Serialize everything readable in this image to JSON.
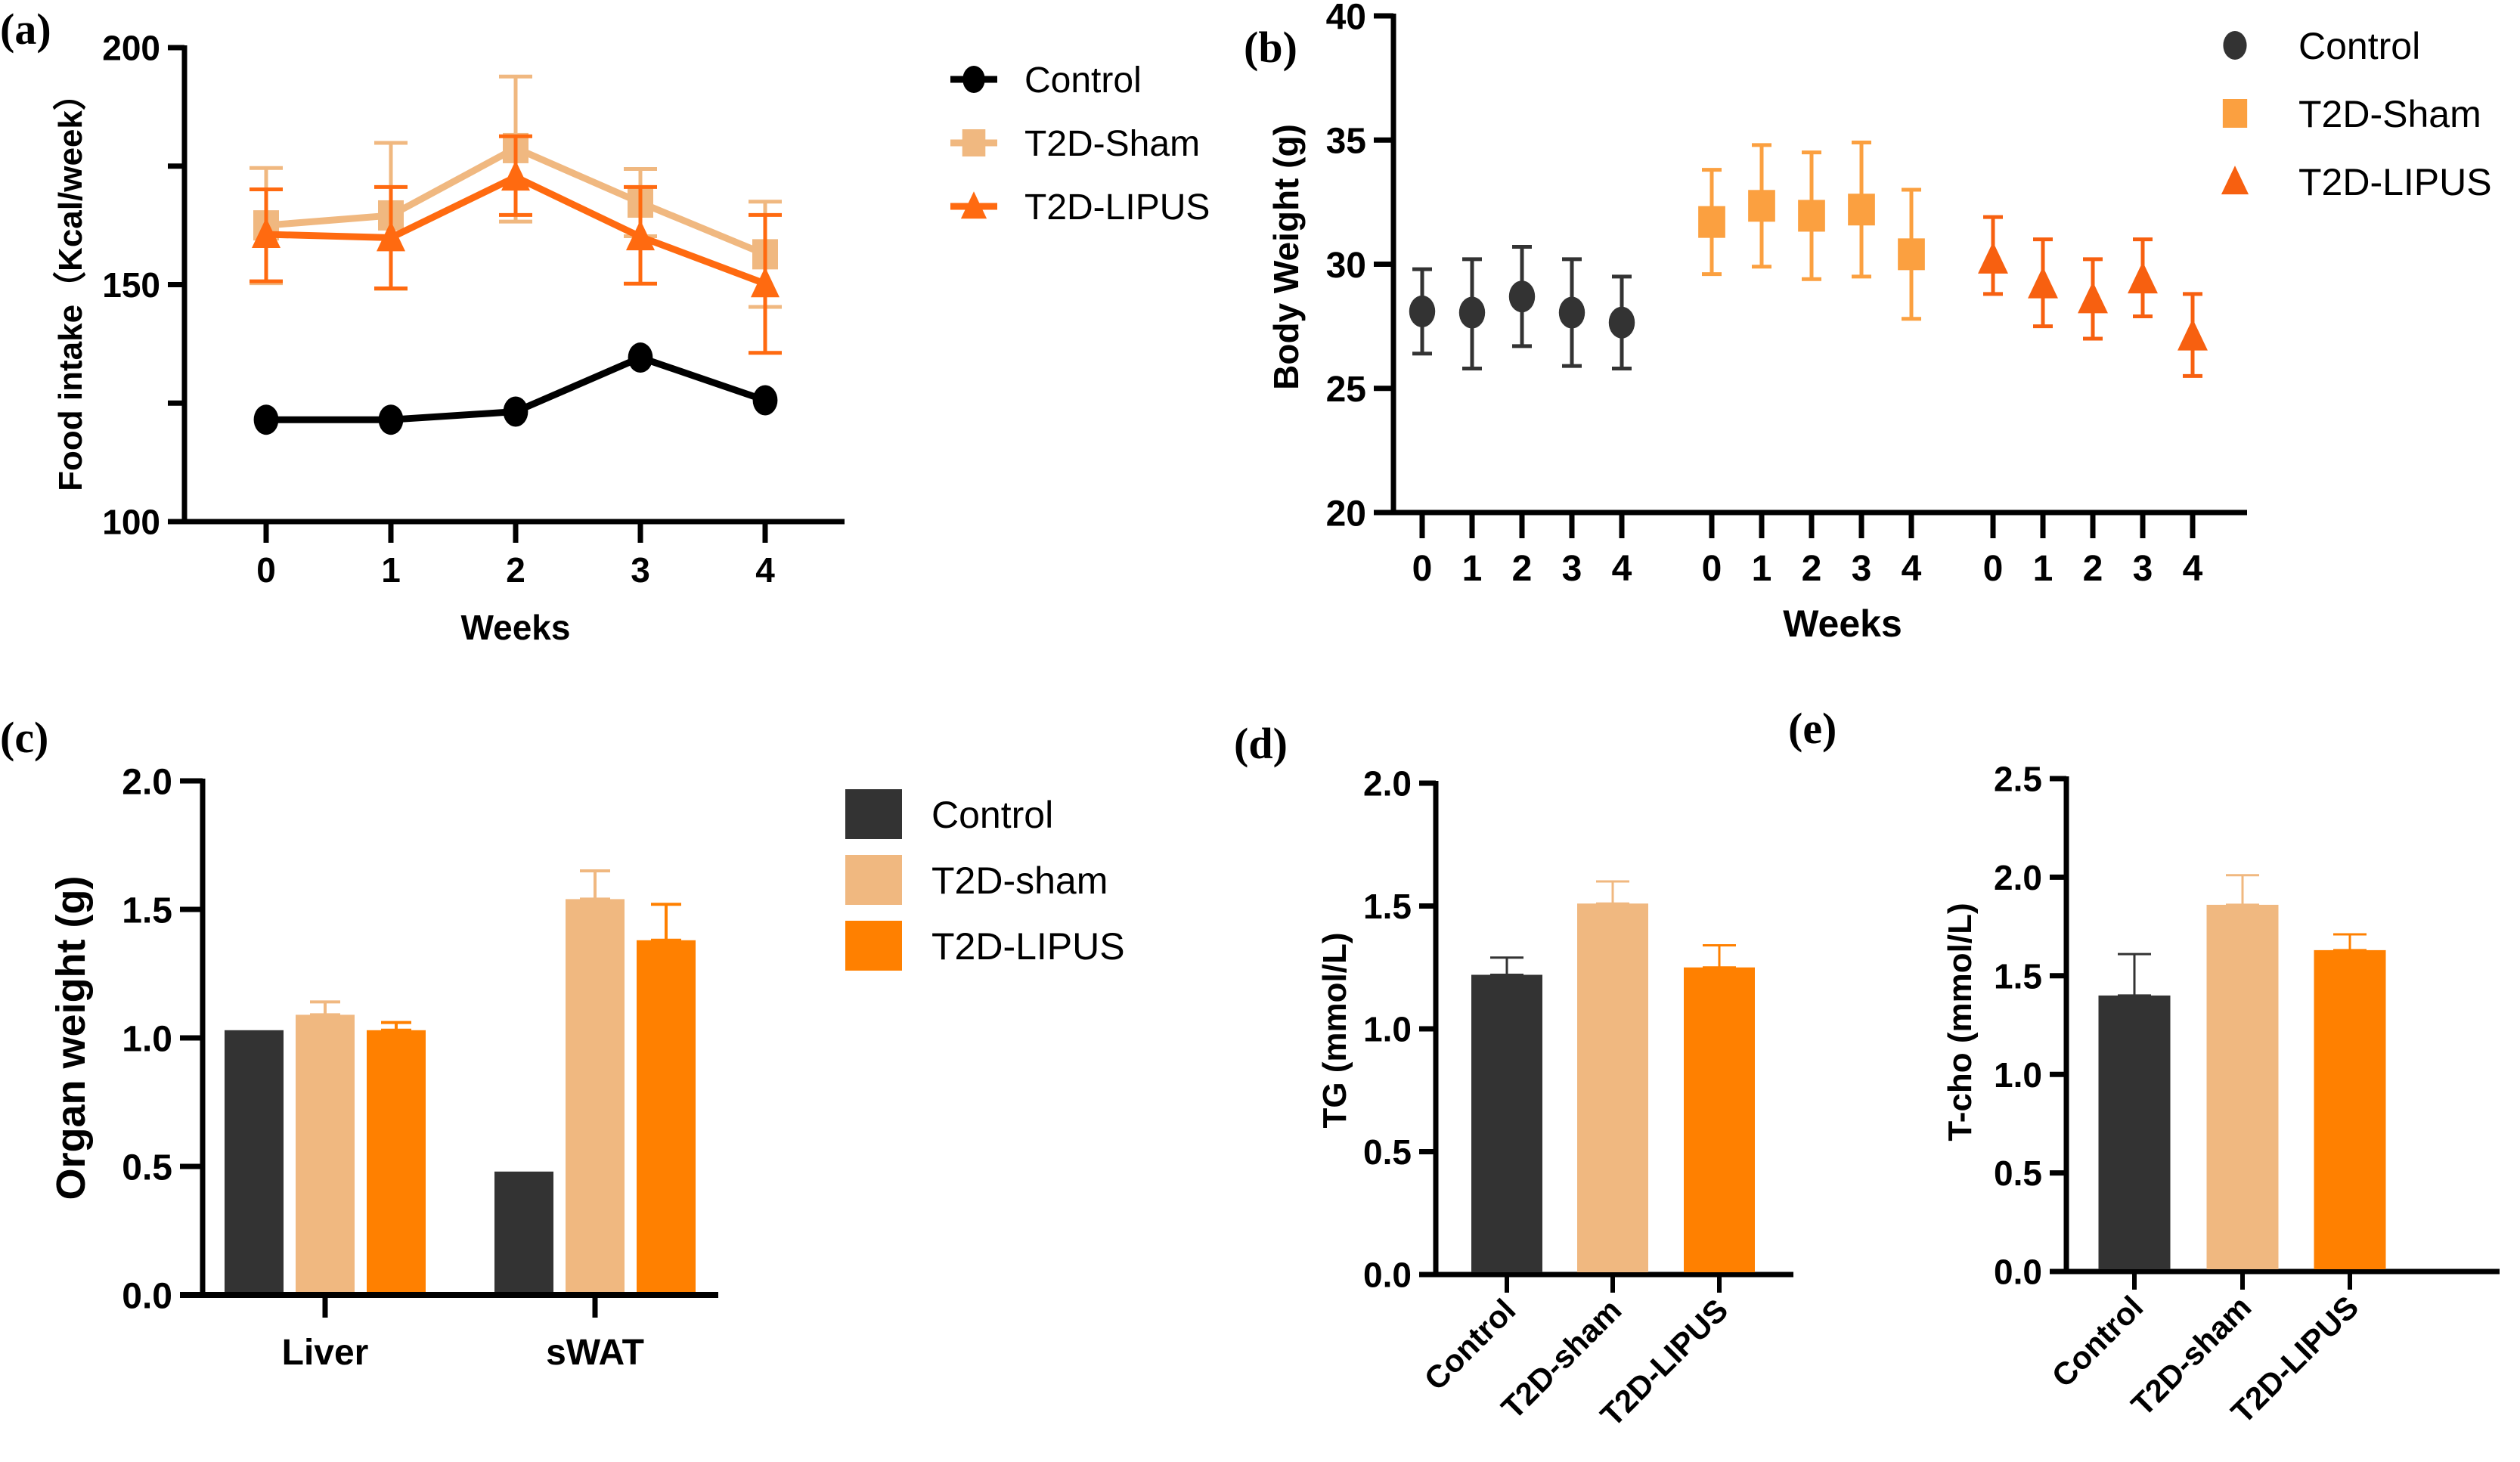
{
  "panels": {
    "a": {
      "label": "(a)"
    },
    "b": {
      "label": "(b)"
    },
    "c": {
      "label": "(c)"
    },
    "d": {
      "label": "(d)"
    },
    "e": {
      "label": "(e)"
    }
  },
  "chart_data": [
    {
      "id": "a",
      "type": "line",
      "title": "",
      "xlabel": "Weeks",
      "ylabel": "Food intake（Kcal/week）",
      "x": [
        0,
        1,
        2,
        3,
        4
      ],
      "xticks": [
        "0",
        "1",
        "2",
        "3",
        "4"
      ],
      "ylim": [
        100,
        200
      ],
      "yticks": [
        100,
        125,
        150,
        175,
        200
      ],
      "ytick_labels": [
        "100",
        "",
        "150",
        "",
        "200"
      ],
      "grid": false,
      "legend": "right",
      "series": [
        {
          "name": "Control",
          "color": "#000000",
          "marker": "circle",
          "values": [
            121.5,
            121.5,
            123.2,
            134.6,
            125.6
          ],
          "err_upper": [
            null,
            null,
            null,
            null,
            null
          ],
          "err_lower": [
            null,
            null,
            null,
            null,
            null
          ]
        },
        {
          "name": "T2D-Sham",
          "color": "#F0B880",
          "marker": "square",
          "values": [
            162.5,
            164.6,
            178.8,
            167.3,
            156.4
          ],
          "err_upper": [
            174.6,
            179.9,
            193.9,
            174.4,
            167.5
          ],
          "err_lower": [
            150.3,
            149.1,
            163.3,
            160.2,
            145.3
          ]
        },
        {
          "name": "T2D-LIPUS",
          "color": "#FF6A10",
          "marker": "triangle",
          "values": [
            160.6,
            159.9,
            172.7,
            160.1,
            150.2
          ],
          "err_upper": [
            170.1,
            170.6,
            181.3,
            170.6,
            164.7
          ],
          "err_lower": [
            150.7,
            149.2,
            164.7,
            150.2,
            135.6
          ]
        }
      ]
    },
    {
      "id": "b",
      "type": "scatter",
      "title": "",
      "xlabel": "Weeks",
      "ylabel": "Body Weight (g)",
      "ylim": [
        20,
        40
      ],
      "yticks": [
        20,
        25,
        30,
        35,
        40
      ],
      "ytick_labels": [
        "20",
        "25",
        "30",
        "35",
        "40"
      ],
      "grid": false,
      "legend": "top-right",
      "series": [
        {
          "name": "Control",
          "color": "#333333",
          "marker": "circle",
          "weeks": [
            "0",
            "1",
            "2",
            "3",
            "4"
          ],
          "values": [
            28.1,
            28.05,
            28.7,
            28.05,
            27.65
          ],
          "err_upper": [
            29.8,
            30.2,
            30.7,
            30.2,
            29.5
          ],
          "err_lower": [
            26.4,
            25.8,
            26.7,
            25.9,
            25.8
          ]
        },
        {
          "name": "T2D-Sham",
          "color": "#FBA040",
          "marker": "square",
          "weeks": [
            "0",
            "1",
            "2",
            "3",
            "4"
          ],
          "values": [
            31.7,
            32.35,
            31.95,
            32.2,
            30.4
          ],
          "err_upper": [
            33.8,
            34.8,
            34.5,
            34.9,
            33.0
          ],
          "err_lower": [
            29.6,
            29.9,
            29.4,
            29.5,
            27.8
          ]
        },
        {
          "name": "T2D-LIPUS",
          "color": "#F76010",
          "marker": "triangle",
          "weeks": [
            "0",
            "1",
            "2",
            "3",
            "4"
          ],
          "values": [
            30.2,
            29.2,
            28.6,
            29.4,
            27.1
          ],
          "err_upper": [
            31.9,
            31.0,
            30.2,
            31.0,
            28.8
          ],
          "err_lower": [
            28.8,
            27.5,
            27.0,
            27.9,
            25.5
          ]
        }
      ]
    },
    {
      "id": "c",
      "type": "bar",
      "title": "",
      "xlabel": "",
      "ylabel": "Organ weight (g)",
      "categories": [
        "Liver",
        "sWAT"
      ],
      "ylim": [
        0,
        2.0
      ],
      "yticks": [
        0,
        0.5,
        1.0,
        1.5,
        2.0
      ],
      "ytick_labels": [
        "0.0",
        "0.5",
        "1.0",
        "1.5",
        "2.0"
      ],
      "grid": false,
      "legend": "right",
      "series": [
        {
          "name": "Control",
          "color": "#333333",
          "values": [
            1.03,
            0.48
          ],
          "err_upper": [
            null,
            null
          ]
        },
        {
          "name": "T2D-sham",
          "color": "#F0B880",
          "values": [
            1.09,
            1.54
          ],
          "err_upper": [
            1.14,
            1.65
          ]
        },
        {
          "name": "T2D-LIPUS",
          "color": "#FF8000",
          "values": [
            1.03,
            1.38
          ],
          "err_upper": [
            1.06,
            1.52
          ]
        }
      ]
    },
    {
      "id": "d",
      "type": "bar",
      "title": "",
      "xlabel": "",
      "ylabel": "TG (mmol/L)",
      "categories": [
        "Control",
        "T2D-sham",
        "T2D-LIPUS"
      ],
      "colors": [
        "#333333",
        "#F0B880",
        "#FF8000"
      ],
      "values": [
        1.22,
        1.51,
        1.25
      ],
      "err_upper": [
        1.29,
        1.6,
        1.34
      ],
      "ylim": [
        0,
        2.0
      ],
      "yticks": [
        0,
        0.5,
        1.0,
        1.5,
        2.0
      ],
      "ytick_labels": [
        "0.0",
        "0.5",
        "1.0",
        "1.5",
        "2.0"
      ],
      "grid": false,
      "legend": "none"
    },
    {
      "id": "e",
      "type": "bar",
      "title": "",
      "xlabel": "",
      "ylabel": "T-cho (mmol/L)",
      "categories": [
        "Control",
        "T2D-sham",
        "T2D-LIPUS"
      ],
      "colors": [
        "#333333",
        "#F0B880",
        "#FF8000"
      ],
      "values": [
        1.4,
        1.86,
        1.63
      ],
      "err_upper": [
        1.61,
        2.01,
        1.71
      ],
      "ylim": [
        0,
        2.5
      ],
      "yticks": [
        0,
        0.5,
        1.0,
        1.5,
        2.0,
        2.5
      ],
      "ytick_labels": [
        "0.0",
        "0.5",
        "1.0",
        "1.5",
        "2.0",
        "2.5"
      ],
      "grid": false,
      "legend": "none"
    }
  ]
}
